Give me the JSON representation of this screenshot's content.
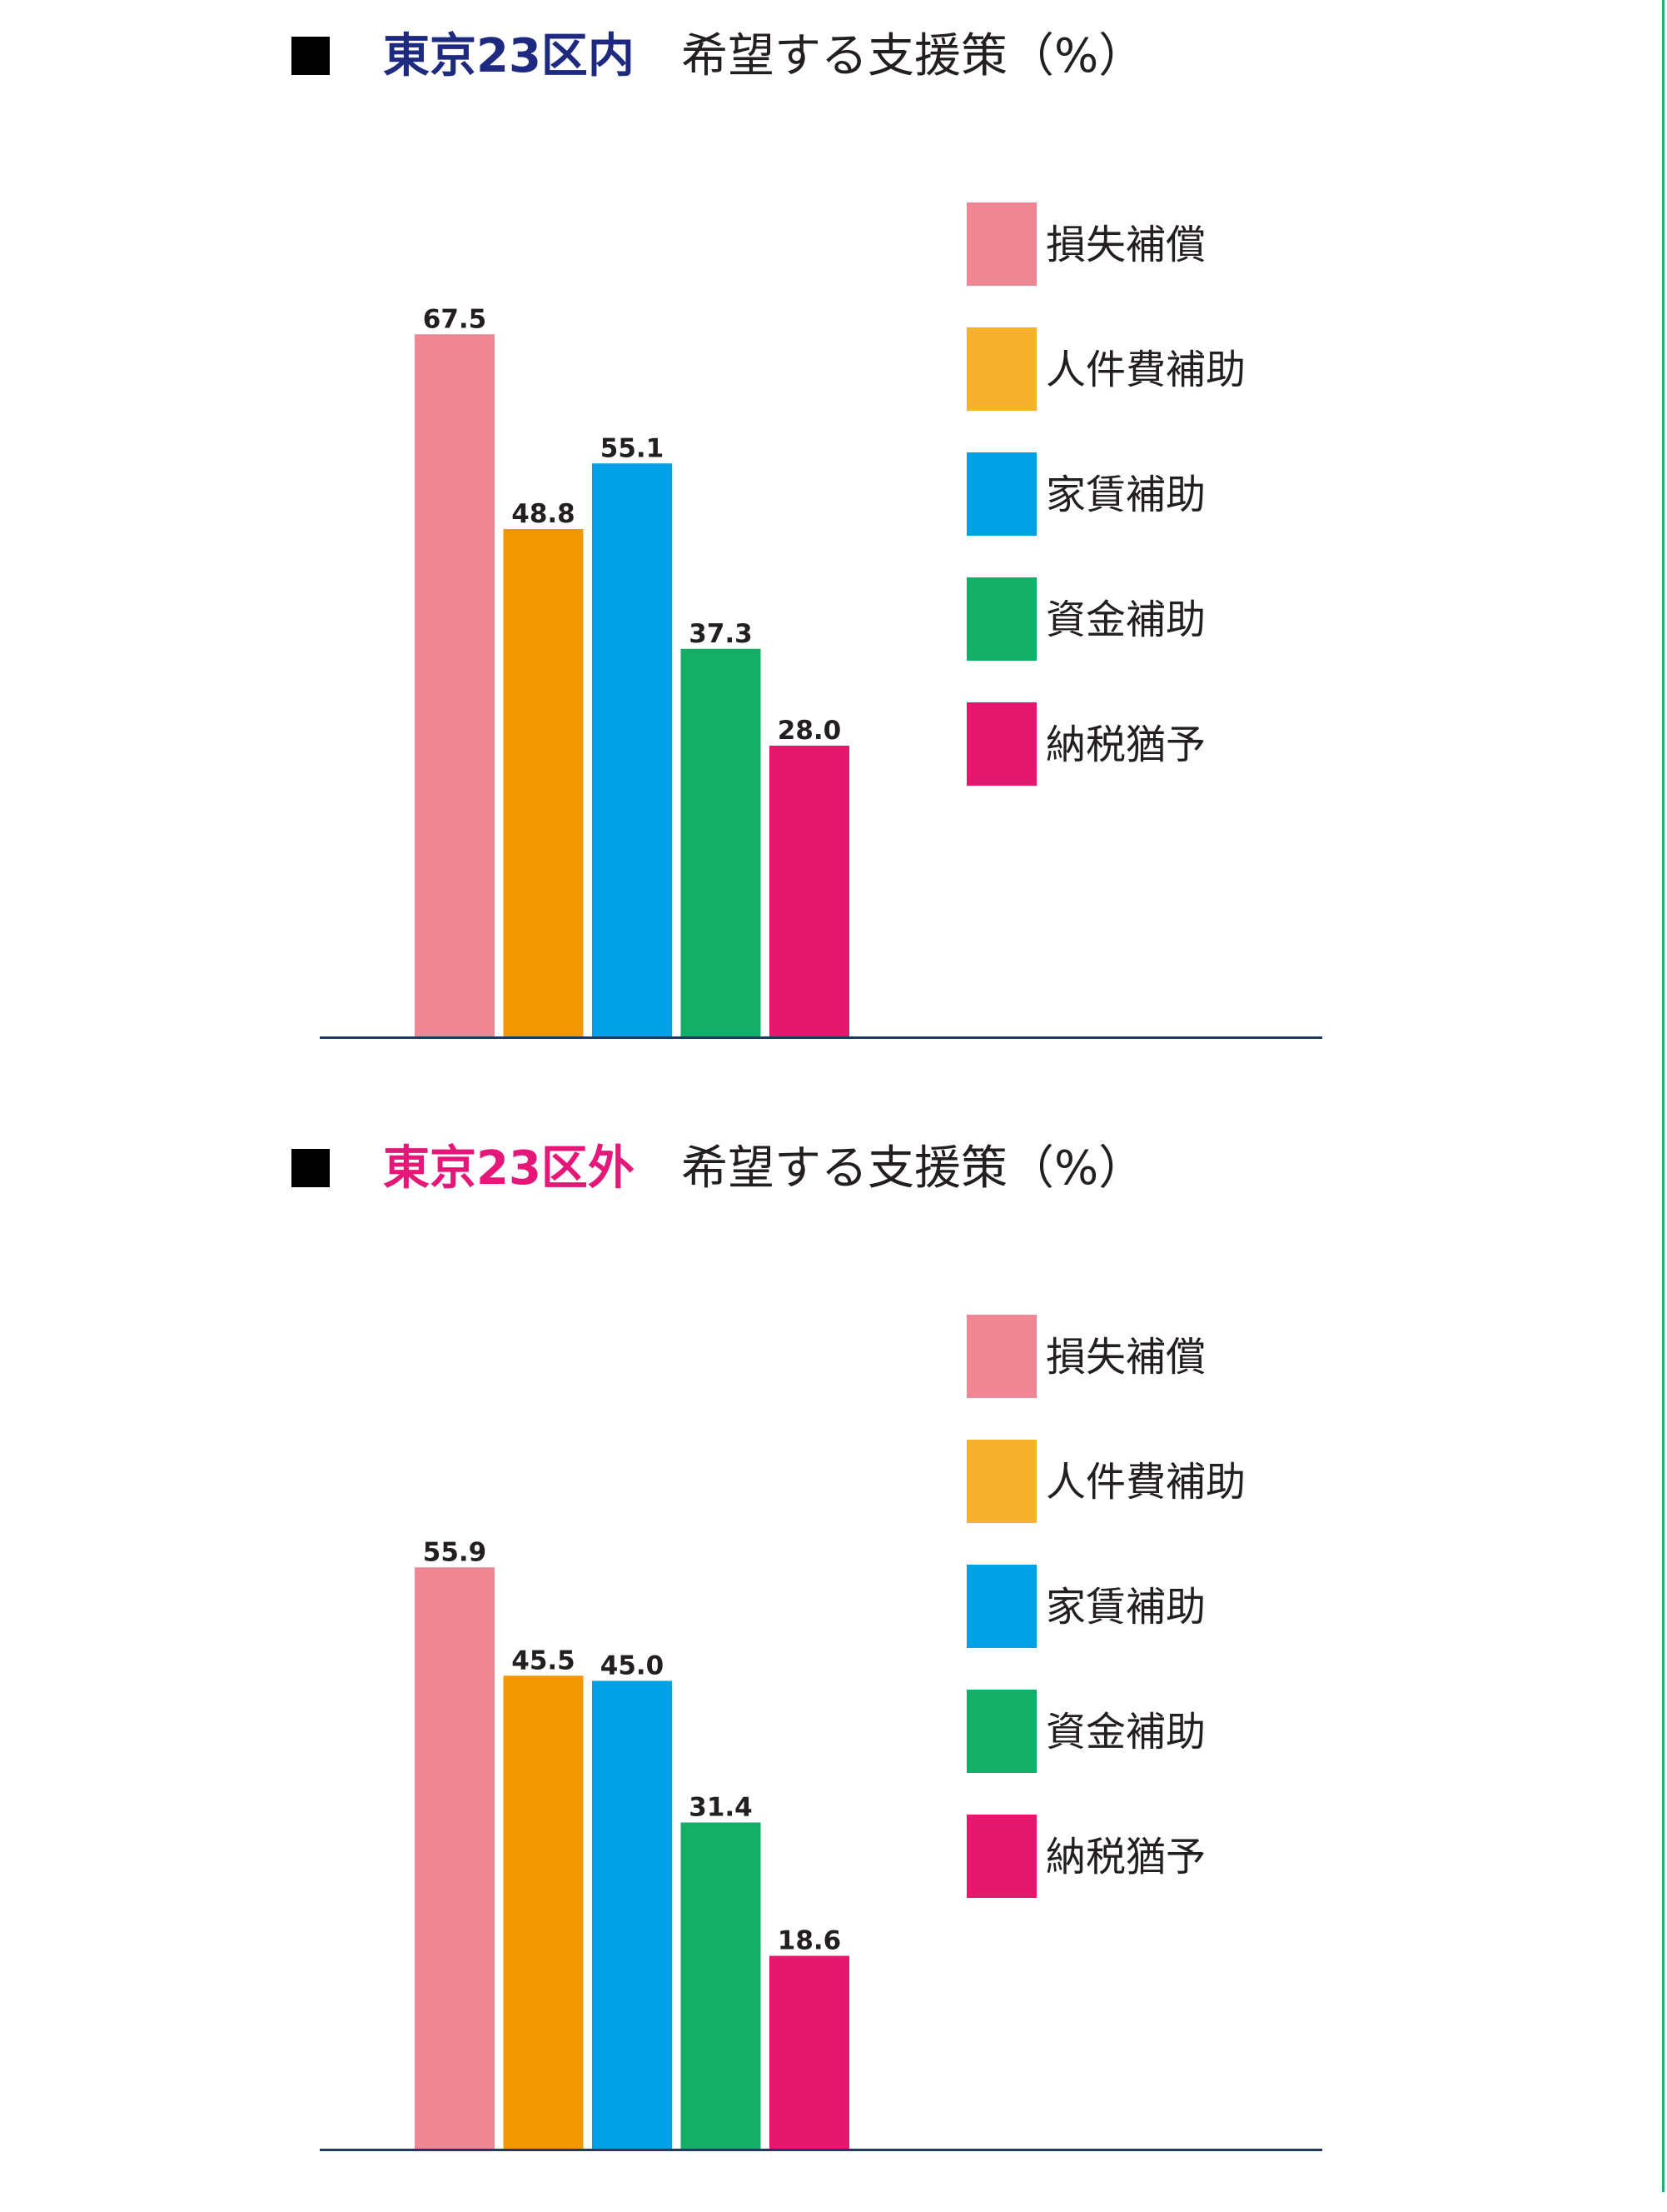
{
  "colors": {
    "accent_line": "#1fb06d",
    "axis": "#1f3a5f",
    "text": "#231f20"
  },
  "chart_data": [
    {
      "type": "bar",
      "region": "東京23区内",
      "region_color": "#1e2a80",
      "subtitle": "希望する支援策（%）",
      "categories": [
        "損失補償",
        "人件費補助",
        "家賃補助",
        "資金補助",
        "納税猶予"
      ],
      "values": [
        67.5,
        48.8,
        55.1,
        37.3,
        28.0
      ],
      "value_labels": [
        "67.5",
        "48.8",
        "55.1",
        "37.3",
        "28.0"
      ],
      "bar_colors": [
        "#ee8693",
        "#f39700",
        "#00a0e6",
        "#13ae67",
        "#e5186e"
      ],
      "legend": [
        "損失補償",
        "人件費補助",
        "家賃補助",
        "資金補助",
        "納税猶予"
      ],
      "legend_colors": [
        "#ee8693",
        "#f6b22f",
        "#00a0e6",
        "#13ae67",
        "#e5186e"
      ],
      "legend_placement": "right",
      "ylim": [
        0,
        80
      ],
      "grid": false
    },
    {
      "type": "bar",
      "region": "東京23区外",
      "region_color": "#e5187a",
      "subtitle": "希望する支援策（%）",
      "categories": [
        "損失補償",
        "人件費補助",
        "家賃補助",
        "資金補助",
        "納税猶予"
      ],
      "values": [
        55.9,
        45.5,
        45.0,
        31.4,
        18.6
      ],
      "value_labels": [
        "55.9",
        "45.5",
        "45.0",
        "31.4",
        "18.6"
      ],
      "bar_colors": [
        "#ee8693",
        "#f39700",
        "#00a0e6",
        "#13ae67",
        "#e5186e"
      ],
      "legend": [
        "損失補償",
        "人件費補助",
        "家賃補助",
        "資金補助",
        "納税猶予"
      ],
      "legend_colors": [
        "#ee8693",
        "#f6b22f",
        "#00a0e6",
        "#13ae67",
        "#e5186e"
      ],
      "legend_placement": "right",
      "ylim": [
        0,
        80
      ],
      "grid": false
    }
  ]
}
